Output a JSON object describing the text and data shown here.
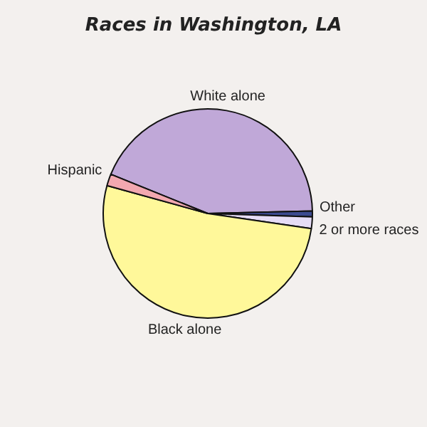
{
  "chart_data": {
    "type": "pie",
    "title": "Races in Washington, LA",
    "categories": [
      "White alone",
      "Other",
      "2 or more races",
      "Black alone",
      "Hispanic"
    ],
    "values": [
      43.5,
      0.9,
      1.8,
      52.0,
      1.8
    ],
    "colors": [
      "#c0a8d8",
      "#3c4a90",
      "#e6dcf6",
      "#fff89a",
      "#f2a8b0"
    ],
    "legend": false
  }
}
